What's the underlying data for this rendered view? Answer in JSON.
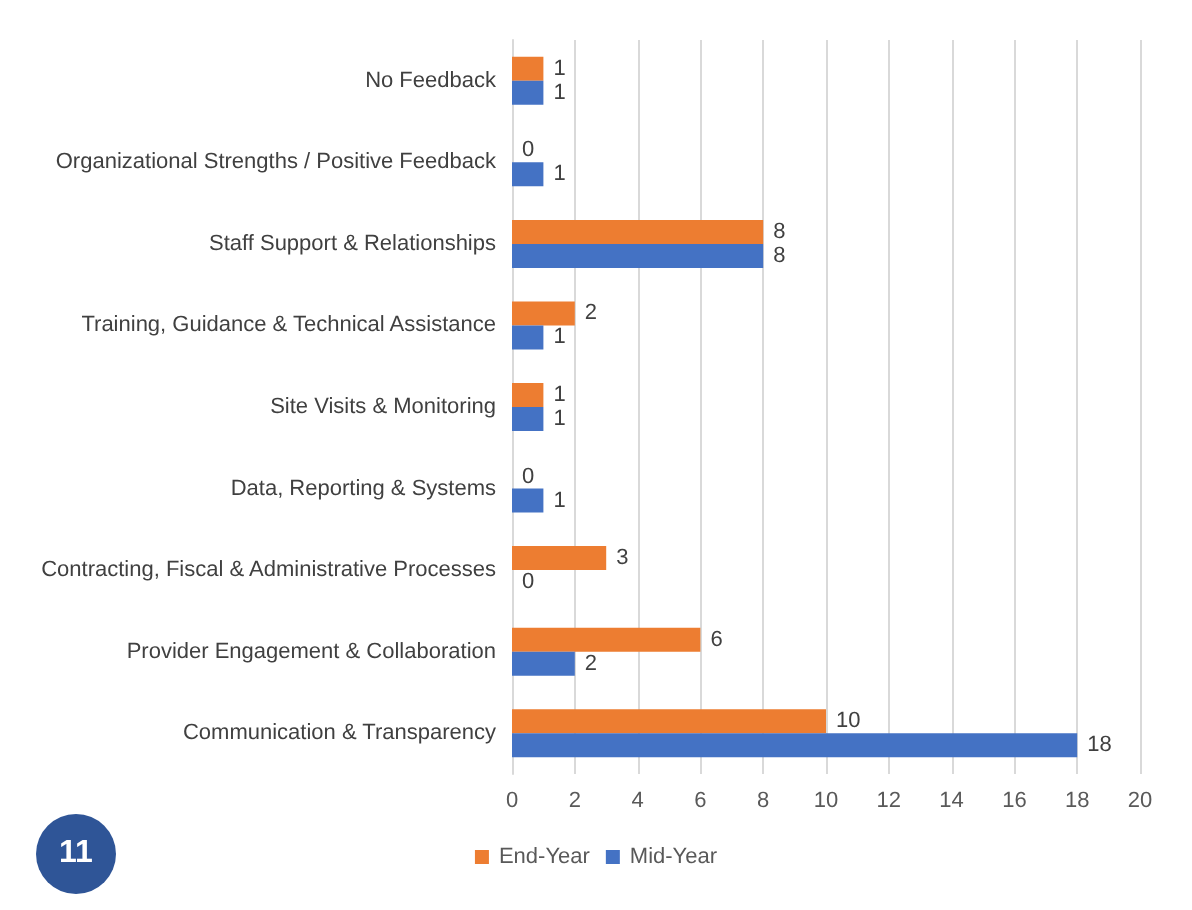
{
  "chart_data": {
    "type": "bar",
    "orientation": "horizontal",
    "categories": [
      "No Feedback",
      "Organizational Strengths / Positive Feedback",
      "Staff Support & Relationships",
      "Training, Guidance & Technical Assistance",
      "Site Visits & Monitoring",
      "Data, Reporting & Systems",
      "Contracting, Fiscal & Administrative Processes",
      "Provider Engagement & Collaboration",
      "Communication & Transparency"
    ],
    "series": [
      {
        "name": "End-Year",
        "color": "#ed7d31",
        "values": [
          1,
          0,
          8,
          2,
          1,
          0,
          3,
          6,
          10
        ]
      },
      {
        "name": "Mid-Year",
        "color": "#4472c4",
        "values": [
          1,
          1,
          8,
          1,
          1,
          1,
          0,
          2,
          18
        ]
      }
    ],
    "xlim": [
      0,
      20
    ],
    "xticks": [
      0,
      2,
      4,
      6,
      8,
      10,
      12,
      14,
      16,
      18,
      20
    ],
    "grid": "x",
    "legend": "bottom",
    "data_labels": true,
    "annotations": [
      "11"
    ]
  }
}
